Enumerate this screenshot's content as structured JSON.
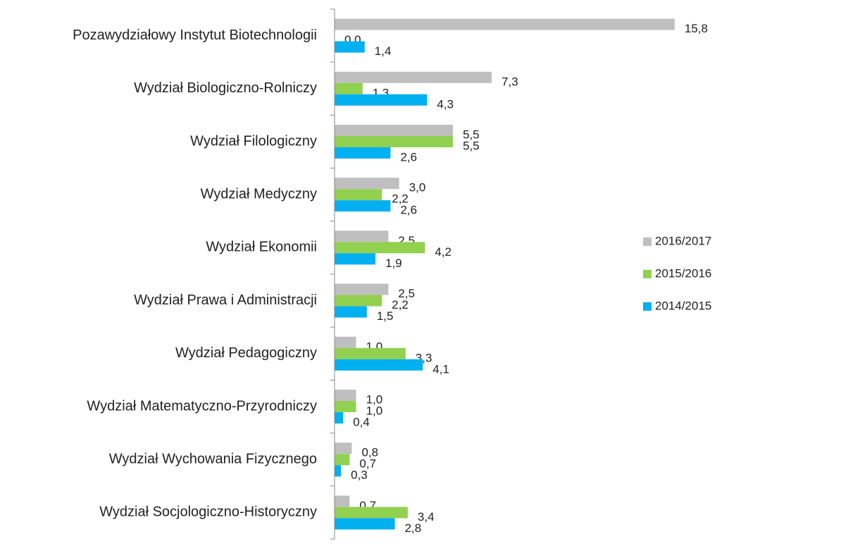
{
  "chart_data": {
    "type": "hbar",
    "categories": [
      "Pozawydziałowy Instytut Biotechnologii",
      "Wydział Biologiczno-Rolniczy",
      "Wydział Filologiczny",
      "Wydział Medyczny",
      "Wydział Ekonomii",
      "Wydział Prawa i Administracji",
      "Wydział Pedagogiczny",
      "Wydział Matematyczno-Przyrodniczy",
      "Wydział Wychowania Fizycznego",
      "Wydział Socjologiczno-Historyczny"
    ],
    "series": [
      {
        "name": "2016/2017",
        "color": "#bfbfbf",
        "values": [
          15.8,
          7.3,
          5.5,
          3.0,
          2.5,
          2.5,
          1.0,
          1.0,
          0.8,
          0.7
        ],
        "value_labels": [
          "15,8",
          "7,3",
          "5,5",
          "3,0",
          "2,5",
          "2,5",
          "1,0",
          "1,0",
          "0,8",
          "0,7"
        ]
      },
      {
        "name": "2015/2016",
        "color": "#92d050",
        "values": [
          0.0,
          1.3,
          5.5,
          2.2,
          4.2,
          2.2,
          3.3,
          1.0,
          0.7,
          3.4
        ],
        "value_labels": [
          "0,0",
          "1,3",
          "5,5",
          "2,2",
          "4,2",
          "2,2",
          "3,3",
          "1,0",
          "0,7",
          "3,4"
        ]
      },
      {
        "name": "2014/2015",
        "color": "#00b0f0",
        "values": [
          1.4,
          4.3,
          2.6,
          2.6,
          1.9,
          1.5,
          4.1,
          0.4,
          0.3,
          2.8
        ],
        "value_labels": [
          "1,4",
          "4,3",
          "2,6",
          "2,6",
          "1,9",
          "1,5",
          "4,1",
          "0,4",
          "0,3",
          "2,8"
        ]
      }
    ],
    "xlim": [
      0,
      16
    ],
    "legend": "right"
  }
}
